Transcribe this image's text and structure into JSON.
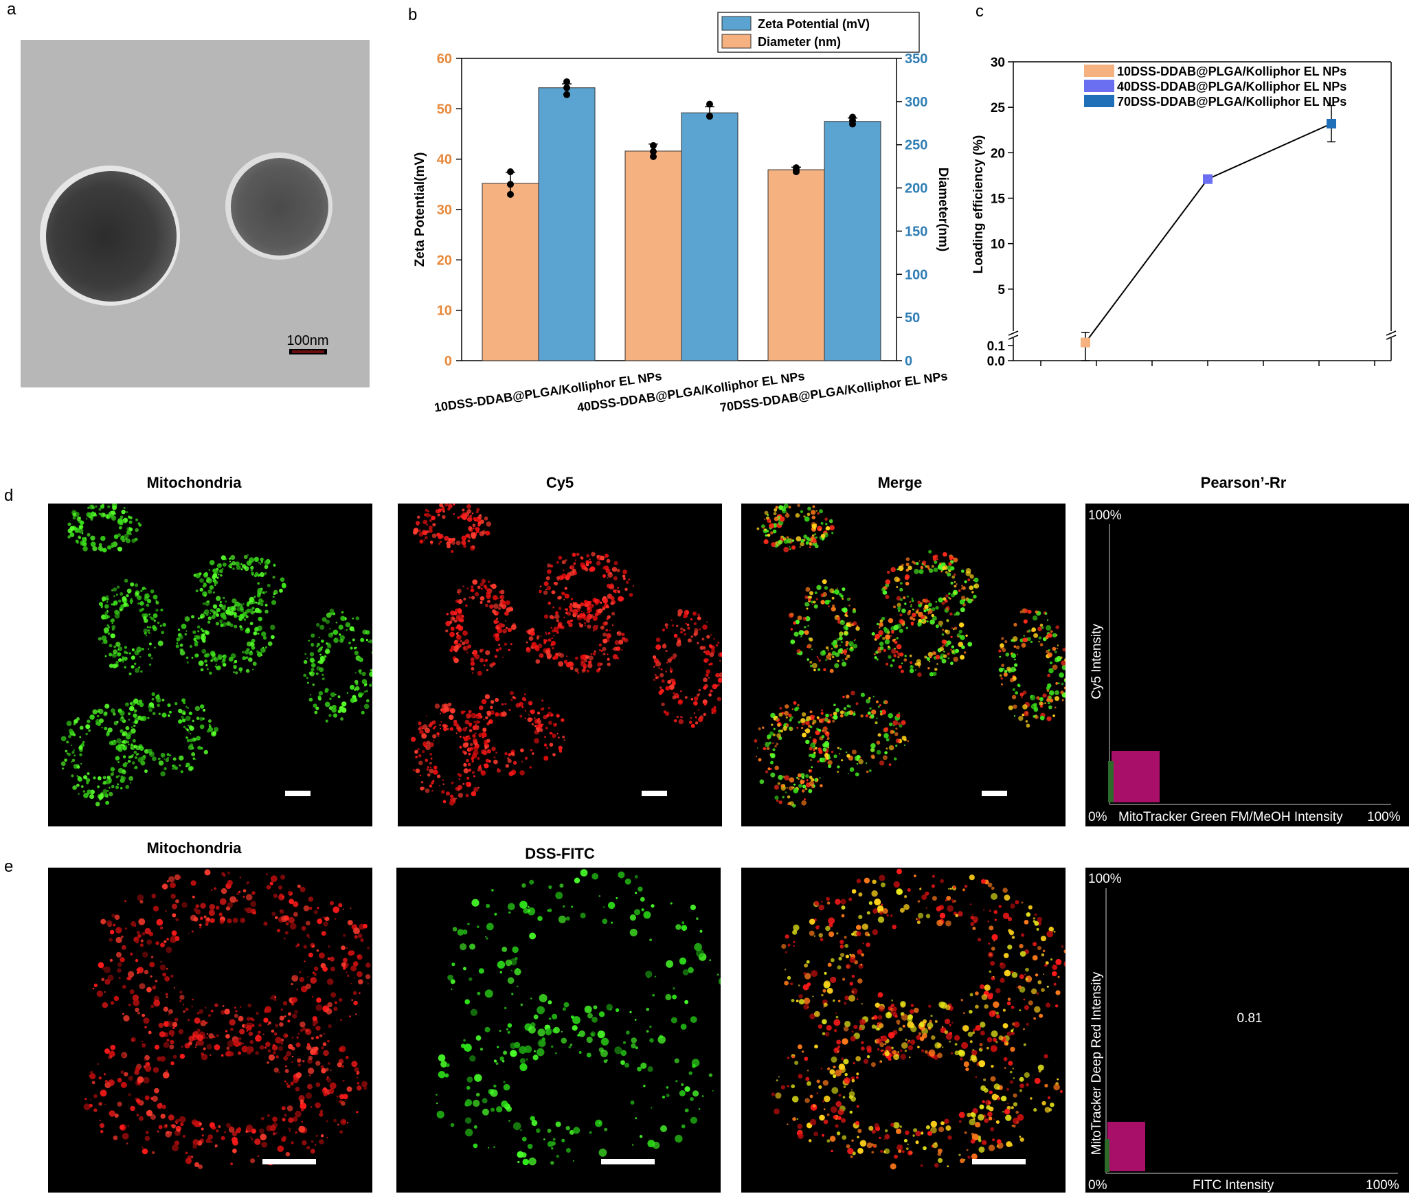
{
  "panel_labels": {
    "a": "a",
    "b": "b",
    "c": "c",
    "d": "d",
    "e": "e"
  },
  "tem": {
    "scale_label": "100nm"
  },
  "row_d": {
    "titles": [
      "Mitochondria",
      "Cy5",
      "Merge",
      "Pearson’-Rr"
    ],
    "scatter": {
      "y_max": "100%",
      "x_min": "0%",
      "x_label": "MitoTracker Green FM/MeOH Intensity",
      "x_max": "100%",
      "y_label": "Cy5 Intensity",
      "value": ""
    }
  },
  "row_e": {
    "titles": [
      "Mitochondria",
      "DSS-FITC"
    ],
    "scatter": {
      "y_max": "100%",
      "x_min": "0%",
      "x_label": "FITC Intensity",
      "x_max": "100%",
      "y_label": "MitoTracker Deep Red Intensity",
      "value": "0.81"
    }
  },
  "chart_data": [
    {
      "type": "bar",
      "panel": "b",
      "categories": [
        "10DSS-DDAB@PLGA/Kolliphor EL NPs",
        "40DSS-DDAB@PLGA/Kolliphor EL NPs",
        "70DSS-DDAB@PLGA/Kolliphor EL NPs"
      ],
      "series": [
        {
          "name": "Diameter (nm)",
          "axis": "left",
          "color": "#F5B180",
          "values": [
            35.2,
            41.6,
            37.9
          ],
          "errors": [
            2.2,
            1.4,
            0.5
          ],
          "points": [
            [
              37.5,
              35.0,
              33.0
            ],
            [
              42.7,
              41.5,
              40.5
            ],
            [
              38.3,
              37.8,
              37.5
            ]
          ]
        },
        {
          "name": "Zeta Potential (mV)",
          "axis": "right",
          "color": "#5BA3D0",
          "values": [
            316,
            287,
            277
          ],
          "errors": [
            4.5,
            7,
            4
          ],
          "points": [
            [
              323,
              316,
              308
            ],
            [
              297,
              283,
              283
            ],
            [
              282,
              278,
              274
            ]
          ]
        }
      ],
      "ylabel": "Zeta Potential(mV)",
      "y2label": "Diameter(nm)",
      "ylim": [
        0,
        60
      ],
      "y2lim": [
        0,
        350
      ],
      "yticks": [
        "0",
        "10",
        "20",
        "30",
        "40",
        "50",
        "60"
      ],
      "y2ticks": [
        "0",
        "50",
        "100",
        "150",
        "200",
        "250",
        "300",
        "350"
      ],
      "left_axis_color": "#E8883A",
      "right_axis_color": "#2E7DB5",
      "legend": [
        "Zeta Potential (mV)",
        "Diameter (nm)"
      ],
      "legend_position": "top-right"
    },
    {
      "type": "line",
      "panel": "c",
      "series": [
        {
          "name": "loading",
          "values": [
            0.12,
            17.1,
            23.2
          ],
          "errors": [
            0.12,
            0.3,
            2.0
          ],
          "colors": [
            "#F5B180",
            "#6A6EF0",
            "#1E6FB8"
          ]
        }
      ],
      "legend": [
        "10DSS-DDAB@PLGA/Kolliphor EL NPs",
        "40DSS-DDAB@PLGA/Kolliphor EL NPs",
        "70DSS-DDAB@PLGA/Kolliphor EL NPs"
      ],
      "legend_position": "top-left",
      "ylabel": "Loading efficiency (%)",
      "yticks": [
        "0.0",
        "0.1",
        "5",
        "10",
        "15",
        "20",
        "25",
        "30"
      ],
      "ylim": [
        0,
        30
      ],
      "y_break": true
    }
  ]
}
